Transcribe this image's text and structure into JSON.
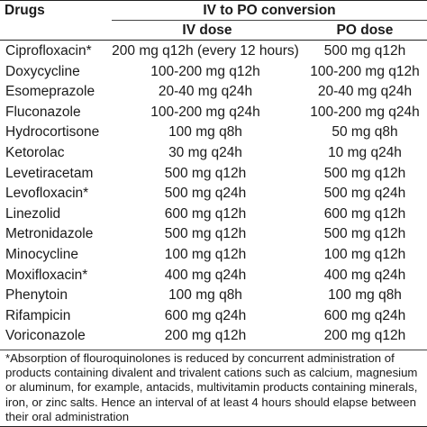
{
  "header": {
    "drugs": "Drugs",
    "conversion": "IV to PO conversion",
    "iv_dose": "IV dose",
    "po_dose": "PO dose"
  },
  "rows": [
    {
      "drug": "Ciprofloxacin*",
      "iv": "200 mg q12h (every 12 hours)",
      "po": "500 mg q12h"
    },
    {
      "drug": "Doxycycline",
      "iv": "100-200 mg q12h",
      "po": "100-200 mg q12h"
    },
    {
      "drug": "Esomeprazole",
      "iv": "20-40 mg q24h",
      "po": "20-40 mg q24h"
    },
    {
      "drug": "Fluconazole",
      "iv": "100-200 mg q24h",
      "po": "100-200 mg q24h"
    },
    {
      "drug": "Hydrocortisone",
      "iv": "100 mg q8h",
      "po": "50 mg q8h"
    },
    {
      "drug": "Ketorolac",
      "iv": "30 mg q24h",
      "po": "10 mg q24h"
    },
    {
      "drug": "Levetiracetam",
      "iv": "500 mg q12h",
      "po": "500 mg q12h"
    },
    {
      "drug": "Levofloxacin*",
      "iv": "500 mg q24h",
      "po": "500 mg q24h"
    },
    {
      "drug": "Linezolid",
      "iv": "600 mg q12h",
      "po": "600 mg q12h"
    },
    {
      "drug": "Metronidazole",
      "iv": "500 mg q12h",
      "po": "500 mg q12h"
    },
    {
      "drug": "Minocycline",
      "iv": "100 mg q12h",
      "po": "100 mg q12h"
    },
    {
      "drug": "Moxifloxacin*",
      "iv": "400 mg q24h",
      "po": "400 mg q24h"
    },
    {
      "drug": "Phenytoin",
      "iv": "100 mg q8h",
      "po": "100 mg q8h"
    },
    {
      "drug": "Rifampicin",
      "iv": "600 mg q24h",
      "po": "600 mg q24h"
    },
    {
      "drug": "Voriconazole",
      "iv": "200 mg q12h",
      "po": "200 mg q12h"
    }
  ],
  "footnote": "*Absorption of flouroquinolones is reduced by concurrent administration of products containing divalent and trivalent cations such as calcium, magnesium or aluminum, for example, antacids, multivitamin products containing minerals, iron, or zinc salts. Hence an interval of at least 4 hours should elapse between their oral administration"
}
